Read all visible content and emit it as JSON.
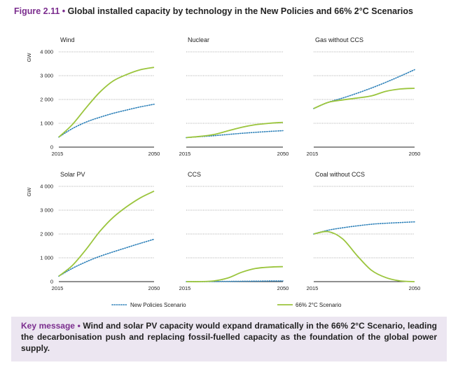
{
  "figure": {
    "number": "Figure 2.11",
    "separator": " • ",
    "title": "Global installed capacity by technology in the New Policies and 66% 2°C Scenarios"
  },
  "key_message": {
    "label": "Key message",
    "separator": " • ",
    "text": "Wind and solar PV capacity would expand dramatically in the 66% 2°C Scenario, leading the decarbonisation push and replacing fossil-fuelled capacity as the foundation of the global power supply."
  },
  "colors": {
    "new_policies": "#2a7fb8",
    "sds": "#9bc53d",
    "accent": "#7b2d8e",
    "box": "#ece6f1"
  },
  "chart_data": {
    "type": "line",
    "ylabel": "GW",
    "yticks": [
      0,
      1000,
      2000,
      3000,
      4000
    ],
    "ytick_labels": [
      "0",
      "1 000",
      "2 000",
      "3 000",
      "4 000"
    ],
    "ylim": [
      0,
      4000
    ],
    "xlim": [
      2015,
      2050
    ],
    "xtick_labels": [
      "2015",
      "2050"
    ],
    "legend": {
      "position": "bottom",
      "entries": [
        "New Policies Scenario",
        "66% 2°C Scenario"
      ]
    },
    "panels": [
      {
        "title": "Wind",
        "x": [
          2015,
          2020,
          2025,
          2030,
          2035,
          2040,
          2045,
          2050
        ],
        "series": [
          {
            "name": "New Policies Scenario",
            "values": [
              420,
              780,
              1050,
              1250,
              1420,
              1560,
              1690,
              1800
            ]
          },
          {
            "name": "66% 2°C Scenario",
            "values": [
              420,
              950,
              1650,
              2300,
              2780,
              3050,
              3250,
              3350
            ]
          }
        ]
      },
      {
        "title": "Nuclear",
        "x": [
          2015,
          2020,
          2025,
          2030,
          2035,
          2040,
          2045,
          2050
        ],
        "series": [
          {
            "name": "New Policies Scenario",
            "values": [
              400,
              440,
              480,
              530,
              580,
              620,
              660,
              690
            ]
          },
          {
            "name": "66% 2°C Scenario",
            "values": [
              400,
              450,
              530,
              680,
              830,
              940,
              1000,
              1040
            ]
          }
        ]
      },
      {
        "title": "Gas without CCS",
        "x": [
          2015,
          2020,
          2025,
          2030,
          2035,
          2040,
          2045,
          2050
        ],
        "series": [
          {
            "name": "New Policies Scenario",
            "values": [
              1620,
              1880,
              2060,
              2260,
              2480,
              2720,
              2980,
              3250
            ]
          },
          {
            "name": "66% 2°C Scenario",
            "values": [
              1620,
              1880,
              1980,
              2060,
              2150,
              2340,
              2440,
              2470
            ]
          }
        ]
      },
      {
        "title": "Solar PV",
        "x": [
          2015,
          2020,
          2025,
          2030,
          2035,
          2040,
          2045,
          2050
        ],
        "series": [
          {
            "name": "New Policies Scenario",
            "values": [
              230,
              560,
              830,
              1060,
              1250,
              1430,
              1610,
              1780
            ]
          },
          {
            "name": "66% 2°C Scenario",
            "values": [
              230,
              680,
              1350,
              2100,
              2700,
              3150,
              3520,
              3800
            ]
          }
        ]
      },
      {
        "title": "CCS",
        "x": [
          2015,
          2020,
          2025,
          2030,
          2035,
          2040,
          2045,
          2050
        ],
        "series": [
          {
            "name": "New Policies Scenario",
            "values": [
              0,
              0,
              5,
              10,
              15,
              20,
              25,
              30
            ]
          },
          {
            "name": "66% 2°C Scenario",
            "values": [
              0,
              0,
              30,
              150,
              390,
              550,
              610,
              630
            ]
          }
        ]
      },
      {
        "title": "Coal without CCS",
        "x": [
          2015,
          2020,
          2025,
          2030,
          2035,
          2040,
          2045,
          2050
        ],
        "series": [
          {
            "name": "New Policies Scenario",
            "values": [
              2000,
              2160,
              2260,
              2340,
              2410,
              2450,
              2480,
              2510
            ]
          },
          {
            "name": "66% 2°C Scenario",
            "values": [
              2000,
              2100,
              1800,
              1100,
              480,
              170,
              30,
              0
            ]
          }
        ]
      }
    ]
  }
}
